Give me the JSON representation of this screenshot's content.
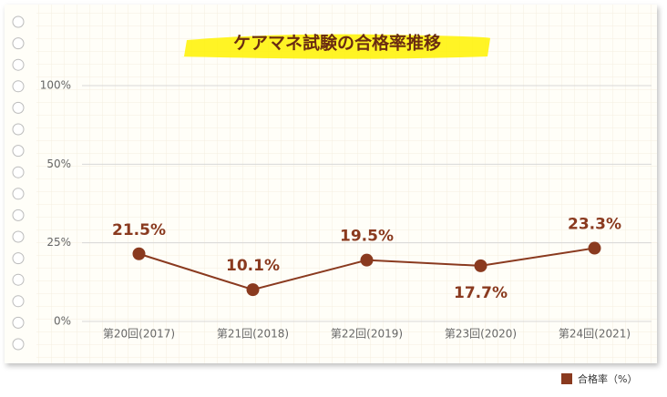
{
  "chart_data": {
    "type": "line",
    "title": "ケアマネ試験の合格率推移",
    "categories": [
      "第20回(2017)",
      "第21回(2018)",
      "第22回(2019)",
      "第23回(2020)",
      "第24回(2021)"
    ],
    "series": [
      {
        "name": "合格率（%）",
        "color": "#8a3a1f",
        "values": [
          21.5,
          10.1,
          19.5,
          17.7,
          23.3
        ],
        "value_labels": [
          "21.5%",
          "10.1%",
          "19.5%",
          "17.7%",
          "23.3%"
        ]
      }
    ],
    "ylim": [
      0,
      100
    ],
    "yticks": [
      {
        "value": 0,
        "label": "0%"
      },
      {
        "value": 25,
        "label": "25%"
      },
      {
        "value": 50,
        "label": "50%"
      },
      {
        "value": 100,
        "label": "100%"
      }
    ],
    "grid": true,
    "legend": "bottom-right"
  }
}
